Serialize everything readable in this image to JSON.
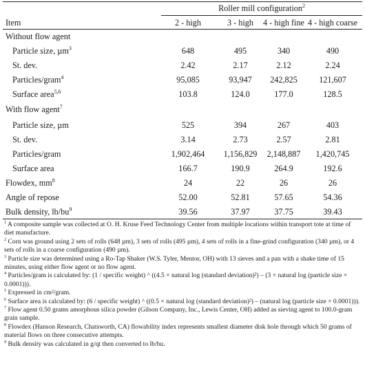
{
  "table": {
    "group_header": "Roller mill configuration",
    "group_header_ref": "2",
    "item_header": "Item",
    "columns": [
      "2 - high",
      "3 - high",
      "4 - high fine",
      "4 - high coarse"
    ],
    "sections": [
      {
        "title": "Without flow agent",
        "title_ref": "",
        "rows": [
          {
            "label": "Particle size, µm",
            "ref": "3",
            "values": [
              "648",
              "495",
              "340",
              "490"
            ]
          },
          {
            "label": "St. dev.",
            "ref": "",
            "values": [
              "2.42",
              "2.17",
              "2.12",
              "2.24"
            ]
          },
          {
            "label": "Particles/gram",
            "ref": "4",
            "values": [
              "95,085",
              "93,947",
              "242,825",
              "121,607"
            ]
          },
          {
            "label": "Surface area",
            "ref": "5,6",
            "values": [
              "103.8",
              "124.0",
              "177.0",
              "128.5"
            ]
          }
        ]
      },
      {
        "title": "With flow agent",
        "title_ref": "7",
        "rows": [
          {
            "label": "Particle size, µm",
            "ref": "",
            "values": [
              "525",
              "394",
              "267",
              "403"
            ]
          },
          {
            "label": "St. dev.",
            "ref": "",
            "values": [
              "3.14",
              "2.73",
              "2.57",
              "2.81"
            ]
          },
          {
            "label": "Particles/gram",
            "ref": "",
            "values": [
              "1,902,464",
              "1,156,829",
              "2,148,887",
              "1,420,745"
            ]
          },
          {
            "label": "Surface area",
            "ref": "",
            "values": [
              "166.7",
              "190.9",
              "264.9",
              "192.6"
            ]
          }
        ]
      }
    ],
    "summary_rows": [
      {
        "label": "Flowdex, mm",
        "ref": "8",
        "values": [
          "24",
          "22",
          "26",
          "26"
        ]
      },
      {
        "label": "Angle of repose",
        "ref": "",
        "values": [
          "52.00",
          "52.81",
          "57.65",
          "54.36"
        ]
      },
      {
        "label": "Bulk density, lb/bu",
        "ref": "9",
        "values": [
          "39.56",
          "37.97",
          "37.75",
          "39.43"
        ]
      }
    ]
  },
  "footnotes": [
    {
      "ref": "1",
      "text": "A composite sample was collected at O. H. Kruse Feed Technology Center from multiple locations within transport tote at time of diet manufacture."
    },
    {
      "ref": "2",
      "text": "Corn was ground using 2 sets of rolls (648 µm), 3 sets of rolls (495 µm), 4 sets of rolls in a fine-grind configuration (340 µm), or 4 sets of rolls in a coarse configuration (490 µm)."
    },
    {
      "ref": "3",
      "text": "Particle size was determined using a Ro-Tap Shaker (W.S. Tyler, Mentor, OH) with 13 sieves and a pan with a shake time of 15 minutes, using either flow agent or no flow agent."
    },
    {
      "ref": "4",
      "text": "Particles/gram is calculated by: (1 / specific weight) ^ ((4.5 × natural log (standard deviation)²) – (3 × natural log (particle size × 0.0001)))."
    },
    {
      "ref": "5",
      "text": "Expressed in cm²/gram."
    },
    {
      "ref": "6",
      "text": "Surface area is calculated by: (6 / specific weight) ^ ((0.5 × natural log (standard deviation)²) – (natural log (particle size × 0.0001)))."
    },
    {
      "ref": "7",
      "text": "Flow agent 0.50 grams amorphous silica powder (Gilson Company, Inc., Lewis Center, OH) added as sieving agent to 100.0-gram grain sample."
    },
    {
      "ref": "8",
      "text": "Flowdex (Hanson Research, Chatsworth, CA) flowability index represents smallest diameter disk hole through which 50 grams of material flows on three consecutive attempts."
    },
    {
      "ref": "9",
      "text": "Bulk density was calculated in g/qt then converted to lb/bu."
    }
  ]
}
